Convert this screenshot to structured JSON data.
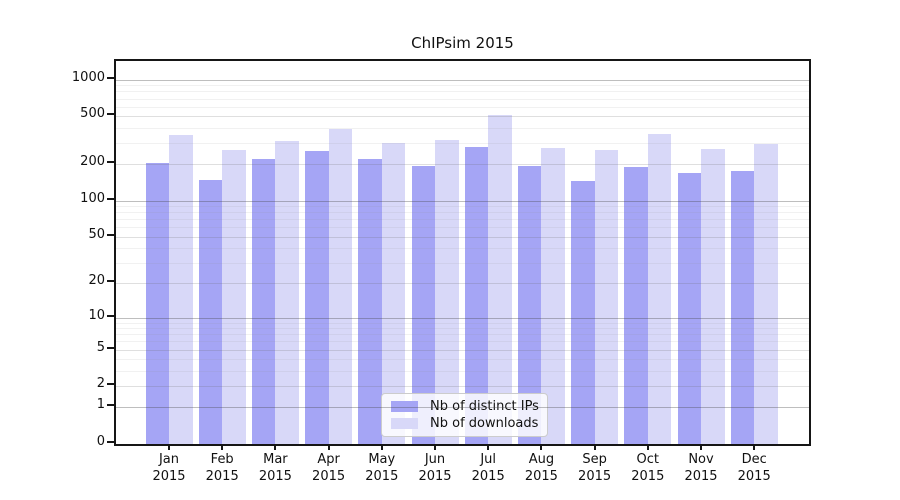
{
  "chart_data": {
    "type": "bar",
    "title": "ChIPsim 2015",
    "categories": [
      "Jan",
      "Feb",
      "Mar",
      "Apr",
      "May",
      "Jun",
      "Jul",
      "Aug",
      "Sep",
      "Oct",
      "Nov",
      "Dec"
    ],
    "year_label": "2015",
    "series": [
      {
        "name": "Nb of distinct IPs",
        "color": "#a5a5f5",
        "values": [
          205,
          150,
          220,
          260,
          223,
          193,
          280,
          195,
          146,
          190,
          169,
          177
        ]
      },
      {
        "name": "Nb of downloads",
        "color": "#d8d8f8",
        "values": [
          350,
          265,
          310,
          390,
          300,
          320,
          510,
          275,
          262,
          355,
          268,
          295
        ]
      }
    ],
    "y_axis": {
      "scale": "log10(1+x)",
      "tick_labels": [
        "0",
        "1",
        "2",
        "5",
        "10",
        "20",
        "50",
        "100",
        "200",
        "500",
        "1000"
      ],
      "ticks": [
        0,
        1,
        2,
        5,
        10,
        20,
        50,
        100,
        200,
        500,
        1000
      ],
      "decade_ticks": [
        1,
        10,
        100,
        1000
      ],
      "minor_multipliers": [
        3,
        4,
        6,
        7,
        8,
        9
      ],
      "max_log": 3.171
    },
    "x_axis": {
      "label_format": "month over year"
    },
    "grid": true,
    "legend_position": "bottom-center"
  }
}
